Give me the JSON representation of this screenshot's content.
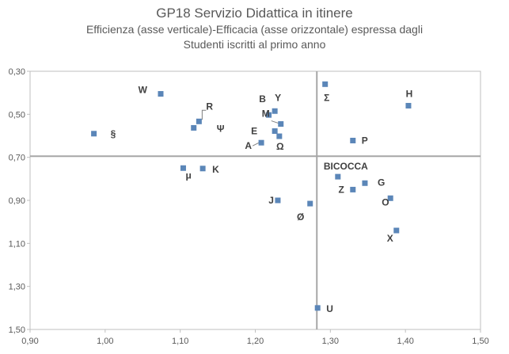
{
  "chart_data": {
    "type": "scatter",
    "title": "GP18 Servizio Didattica in itinere",
    "subtitle_lines": [
      "Efficienza  (asse verticale)-Efficacia  (asse orizzontale) espressa dagli",
      "Studenti iscritti al primo anno"
    ],
    "xlim": [
      0.9,
      1.5
    ],
    "ylim": [
      0.3,
      1.5
    ],
    "y_inverted": true,
    "x_ticks": [
      "0,90",
      "1,00",
      "1,10",
      "1,20",
      "1,30",
      "1,40",
      "1,50"
    ],
    "y_ticks": [
      "0,30",
      "0,50",
      "0,70",
      "0,90",
      "1,10",
      "1,30",
      "1,50"
    ],
    "reference_lines": {
      "x": 1.282,
      "y": 0.695
    },
    "gridlines": false,
    "marker_color": "#5b86b8",
    "points": [
      {
        "label": "W",
        "x": 1.074,
        "y": 0.405
      },
      {
        "label": "§",
        "x": 0.985,
        "y": 0.59
      },
      {
        "label": "R",
        "x": 1.125,
        "y": 0.533
      },
      {
        "label": "Ψ",
        "x": 1.118,
        "y": 0.563
      },
      {
        "label": "μ",
        "x": 1.104,
        "y": 0.75
      },
      {
        "label": "K",
        "x": 1.13,
        "y": 0.752
      },
      {
        "label": "B",
        "x": 1.218,
        "y": 0.503
      },
      {
        "label": "Y",
        "x": 1.226,
        "y": 0.485
      },
      {
        "label": "M",
        "x": 1.234,
        "y": 0.545
      },
      {
        "label": "E",
        "x": 1.226,
        "y": 0.578
      },
      {
        "label": "Ω",
        "x": 1.232,
        "y": 0.602
      },
      {
        "label": "A",
        "x": 1.208,
        "y": 0.632
      },
      {
        "label": "J",
        "x": 1.23,
        "y": 0.9
      },
      {
        "label": "Ø",
        "x": 1.273,
        "y": 0.915
      },
      {
        "label": "Σ",
        "x": 1.293,
        "y": 0.36
      },
      {
        "label": "H",
        "x": 1.404,
        "y": 0.46
      },
      {
        "label": "P",
        "x": 1.33,
        "y": 0.622
      },
      {
        "label": "BICOCCA",
        "x": 1.31,
        "y": 0.79
      },
      {
        "label": "G",
        "x": 1.346,
        "y": 0.82
      },
      {
        "label": "Z",
        "x": 1.33,
        "y": 0.85
      },
      {
        "label": "O",
        "x": 1.38,
        "y": 0.89
      },
      {
        "label": "X",
        "x": 1.388,
        "y": 1.04
      },
      {
        "label": "U",
        "x": 1.283,
        "y": 1.4
      }
    ]
  }
}
